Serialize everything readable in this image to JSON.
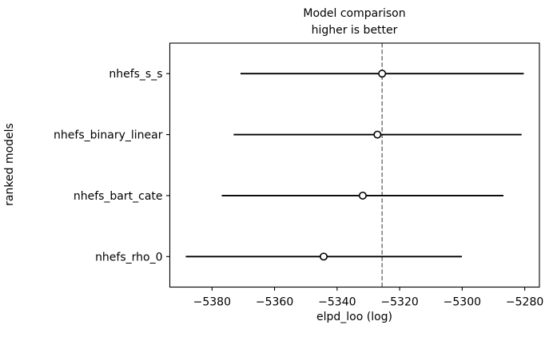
{
  "chart_data": {
    "type": "scatter",
    "variant": "errorbar-forest-model-comparison",
    "title": "Model comparison",
    "subtitle": "higher is better",
    "xlabel": "elpd_loo (log)",
    "ylabel": "ranked models",
    "categories": [
      "nhefs_s_s",
      "nhefs_binary_linear",
      "nhefs_bart_cate",
      "nhefs_rho_0"
    ],
    "points": [
      {
        "model": "nhefs_s_s",
        "elpd_loo": -5325.6,
        "ci_low": -5370.9,
        "ci_high": -5280.3
      },
      {
        "model": "nhefs_binary_linear",
        "elpd_loo": -5327.1,
        "ci_low": -5373.1,
        "ci_high": -5281.0
      },
      {
        "model": "nhefs_bart_cate",
        "elpd_loo": -5331.8,
        "ci_low": -5376.9,
        "ci_high": -5286.8
      },
      {
        "model": "nhefs_rho_0",
        "elpd_loo": -5344.3,
        "ci_low": -5388.4,
        "ci_high": -5300.1
      }
    ],
    "reference_line_x": -5325.6,
    "x_ticks": [
      {
        "value": -5380,
        "label": "−5380"
      },
      {
        "value": -5360,
        "label": "−5360"
      },
      {
        "value": -5340,
        "label": "−5340"
      },
      {
        "value": -5320,
        "label": "−5320"
      },
      {
        "value": -5300,
        "label": "−5300"
      },
      {
        "value": -5280,
        "label": "−5280"
      }
    ],
    "xlim": [
      -5393.5,
      -5275.3
    ],
    "grid": false,
    "legend": null,
    "marker_style": "open-circle",
    "colors": {
      "data": "#000000",
      "marker_fill": "#ffffff",
      "reference_line": "#808080",
      "text": "#000000",
      "background": "#ffffff"
    }
  }
}
